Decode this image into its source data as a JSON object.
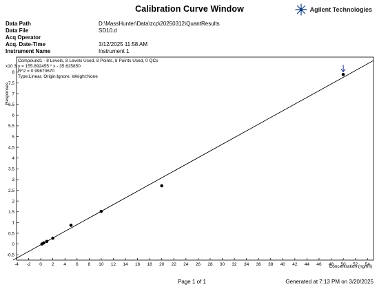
{
  "window": {
    "title": "Calibration Curve Window",
    "brand": "Agilent Technologies"
  },
  "info": [
    {
      "label": "Data Path",
      "value": "D:\\MassHunter\\Data\\zcp\\20250312\\QuantResults"
    },
    {
      "label": "Data File",
      "value": "SD10.d"
    },
    {
      "label": "Acq Operator",
      "value": ""
    },
    {
      "label": "Acq. Date-Time",
      "value": "3/12/2025 11:58 AM"
    },
    {
      "label": "Instrument Name",
      "value": "Instrument 1"
    }
  ],
  "chart_data": {
    "type": "scatter",
    "header": "Compound1 - 8 Levels, 8 Levels Used, 8 Points, 8 Points Used, 0 QCs",
    "equation": "y = 155.892455 * x - 35.625850",
    "r_squared": "R^2 = 0.99670670",
    "fit_type": "Type:Linear, Origin:Ignore, Weight:None",
    "ylabel": "Responses",
    "y_multiplier": "x10 3",
    "xlabel": "Concentration (ng/ml)",
    "xlim": [
      -4,
      55
    ],
    "ylim": [
      -0.75,
      8.7
    ],
    "x_ticks": [
      "-4",
      "-2",
      "0",
      "2",
      "4",
      "6",
      "8",
      "10",
      "12",
      "14",
      "16",
      "18",
      "20",
      "22",
      "24",
      "26",
      "28",
      "30",
      "32",
      "34",
      "36",
      "38",
      "40",
      "42",
      "44",
      "46",
      "48",
      "50",
      "52",
      "54"
    ],
    "y_ticks": [
      "-0.5",
      "0",
      "0.5",
      "1",
      "1.5",
      "2",
      "2.5",
      "3",
      "3.5",
      "4",
      "4.5",
      "5",
      "5.5",
      "6",
      "6.5",
      "7",
      "7.5",
      "8"
    ],
    "points": [
      {
        "x": 0.2,
        "y": 0.0
      },
      {
        "x": 0.5,
        "y": 0.05
      },
      {
        "x": 1.0,
        "y": 0.12
      },
      {
        "x": 2.0,
        "y": 0.27
      },
      {
        "x": 5.0,
        "y": 0.87
      },
      {
        "x": 10.0,
        "y": 1.52
      },
      {
        "x": 20.0,
        "y": 2.71
      },
      {
        "x": 50.0,
        "y": 7.89
      }
    ],
    "fit_line": {
      "slope": 0.155892455,
      "intercept": -0.03562585
    },
    "marker_x": 50.0
  },
  "footer": {
    "page": "Page 1 of 1",
    "generated": "Generated at 7:13 PM on 3/20/2025"
  }
}
